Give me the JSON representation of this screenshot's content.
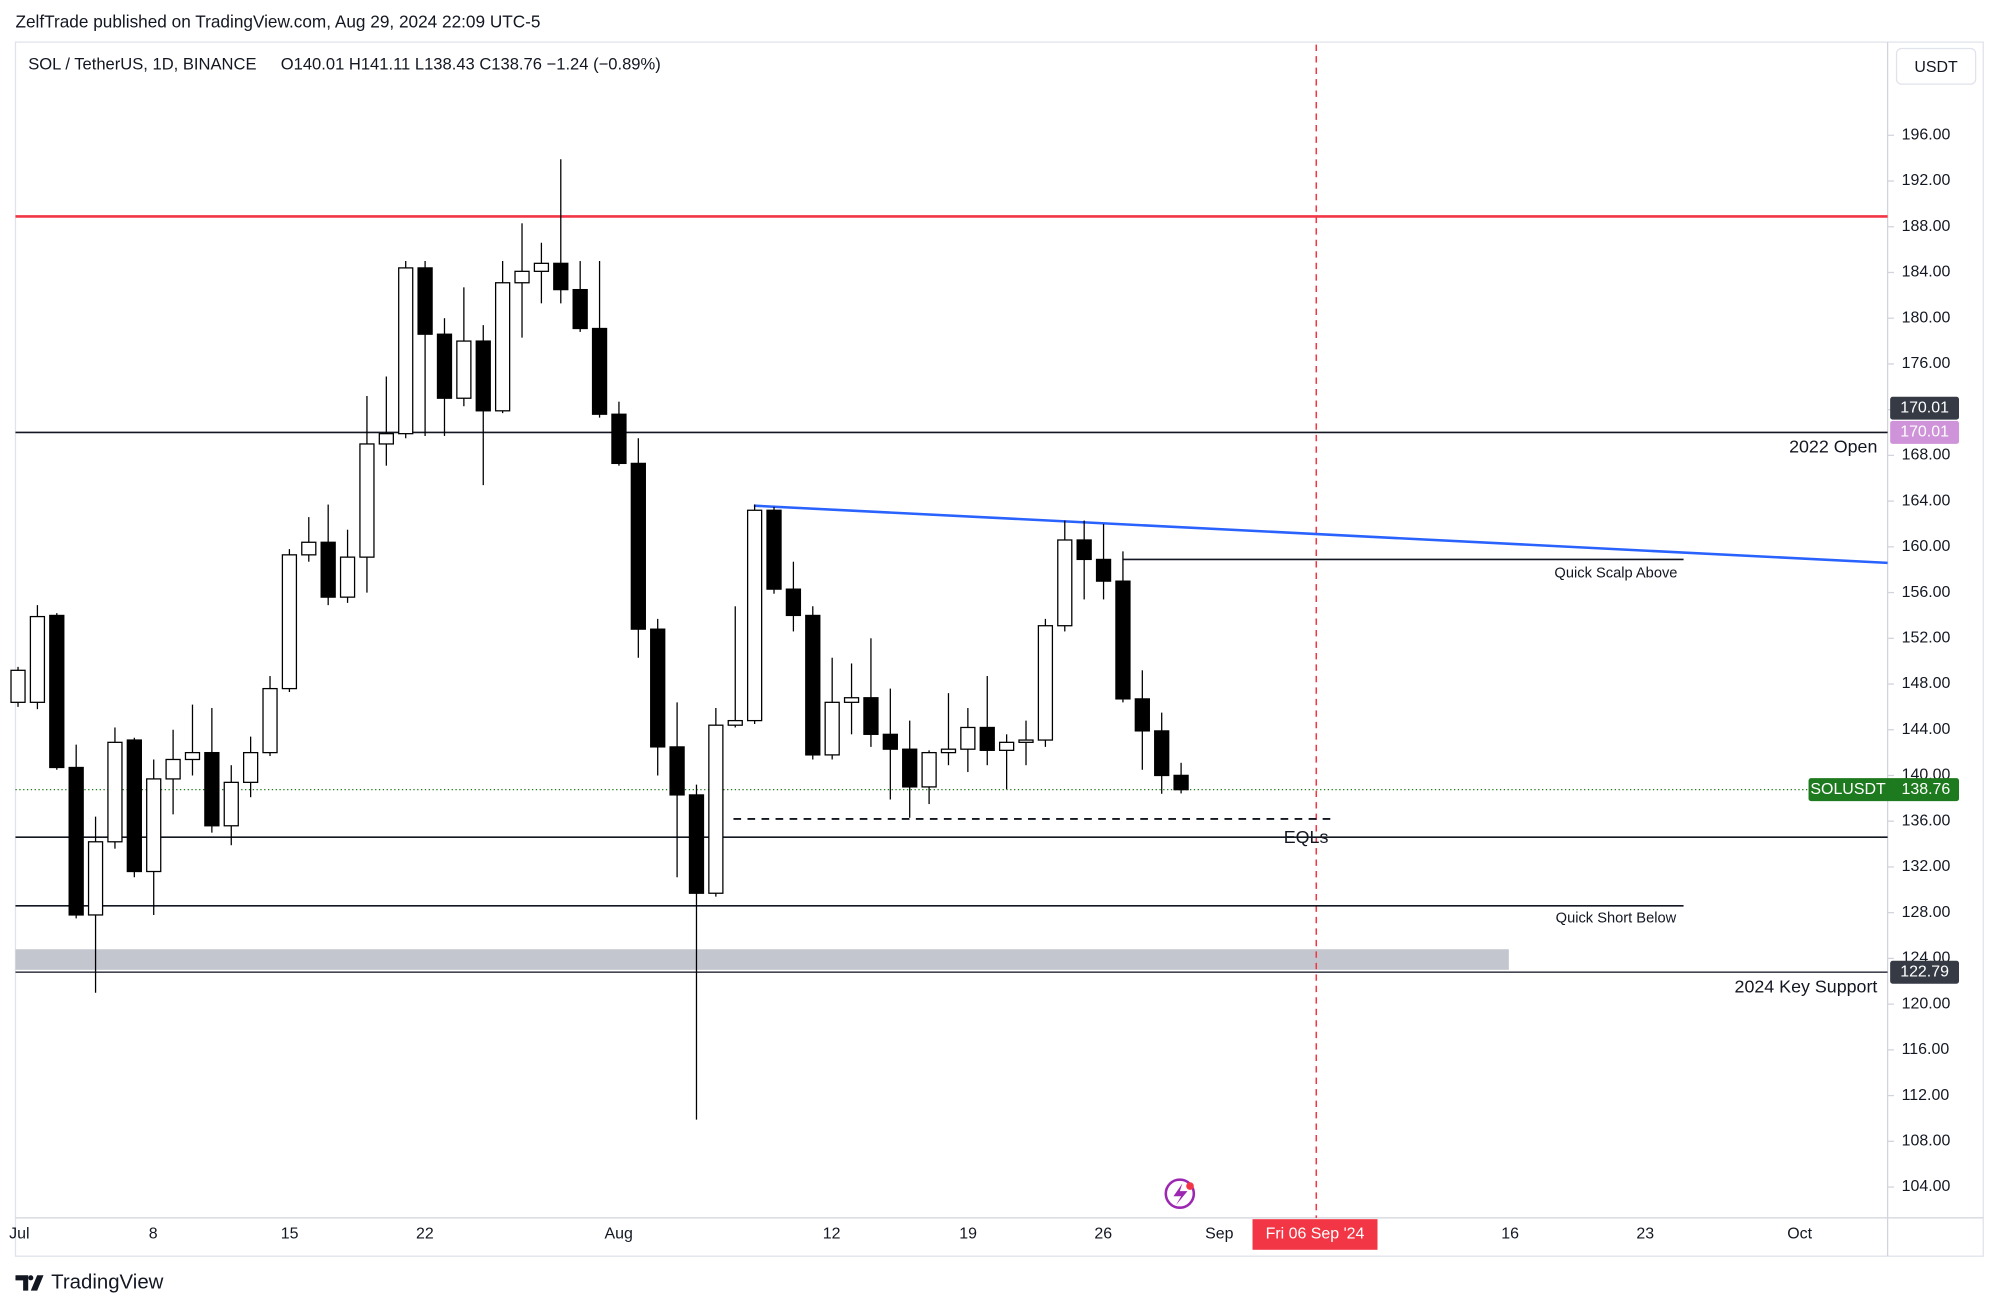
{
  "header": {
    "published": "ZelfTrade published on TradingView.com, Aug 29, 2024 22:09 UTC-5",
    "symbol": "SOL / TetherUS, 1D, BINANCE",
    "ohlc_text": "O140.01  H141.11  L138.43  C138.76  −1.24 (−0.89%)",
    "currency": "USDT",
    "brand": "TradingView"
  },
  "chart_data": {
    "type": "candlestick",
    "open": [
      146.4,
      146.4,
      154.0,
      140.7,
      127.8,
      134.2,
      143.1,
      131.6,
      139.7,
      141.4,
      142.0,
      135.6,
      139.4,
      142.0,
      147.6,
      159.3,
      160.4,
      155.6,
      159.1,
      169.0,
      169.9,
      184.4,
      178.6,
      173.0,
      178.0,
      171.9,
      183.1,
      184.1,
      184.8,
      182.5,
      179.1,
      171.6,
      167.3,
      152.8,
      142.5,
      138.3,
      129.7,
      144.4,
      144.8,
      163.2,
      156.3,
      154.0,
      141.8,
      146.4,
      146.8,
      143.6,
      142.3,
      139.0,
      142.0,
      142.3,
      144.2,
      142.2,
      142.9,
      143.1,
      153.1,
      160.6,
      158.9,
      157.0,
      146.7,
      143.9,
      140.01
    ],
    "high": [
      149.5,
      154.9,
      154.2,
      142.7,
      136.4,
      144.2,
      143.3,
      141.4,
      144.0,
      146.2,
      145.9,
      140.9,
      143.4,
      148.7,
      159.8,
      162.6,
      163.7,
      161.5,
      173.2,
      174.9,
      185.0,
      185.0,
      180.0,
      182.7,
      179.4,
      185.0,
      188.3,
      186.6,
      193.9,
      185.0,
      185.0,
      172.7,
      169.5,
      153.7,
      146.4,
      139.2,
      145.9,
      154.8,
      163.7,
      163.5,
      158.7,
      154.8,
      150.3,
      149.8,
      152.0,
      147.6,
      144.8,
      142.2,
      147.2,
      145.9,
      148.7,
      143.6,
      144.8,
      153.7,
      162.3,
      162.3,
      162.0,
      159.6,
      149.2,
      145.5,
      141.11
    ],
    "low": [
      146.0,
      145.8,
      140.5,
      127.5,
      121.0,
      133.6,
      131.1,
      127.8,
      136.6,
      140.0,
      135.0,
      133.9,
      138.1,
      141.7,
      147.3,
      158.7,
      154.9,
      155.1,
      156.0,
      167.1,
      169.5,
      169.7,
      169.7,
      172.3,
      165.4,
      171.7,
      178.3,
      181.3,
      181.3,
      178.8,
      171.3,
      167.1,
      150.3,
      140.0,
      131.1,
      109.9,
      129.4,
      144.2,
      144.5,
      155.9,
      152.6,
      141.4,
      141.4,
      143.6,
      142.5,
      137.9,
      136.3,
      137.5,
      140.9,
      140.3,
      140.9,
      138.8,
      140.9,
      142.5,
      152.6,
      155.4,
      155.4,
      146.4,
      140.5,
      138.4,
      138.43
    ],
    "close": [
      149.2,
      153.9,
      140.7,
      127.8,
      134.2,
      142.9,
      131.6,
      139.7,
      141.4,
      142.0,
      135.6,
      139.4,
      142.0,
      147.6,
      159.3,
      160.4,
      155.6,
      159.1,
      169.0,
      169.9,
      184.4,
      178.6,
      173.0,
      178.0,
      171.9,
      183.1,
      184.1,
      184.8,
      182.5,
      179.1,
      171.6,
      167.3,
      152.8,
      142.5,
      138.3,
      129.7,
      144.4,
      144.8,
      163.2,
      156.3,
      154.0,
      141.8,
      146.4,
      146.8,
      143.6,
      142.3,
      139.0,
      142.0,
      142.3,
      144.2,
      142.2,
      142.9,
      143.1,
      153.1,
      160.6,
      158.9,
      157.0,
      146.7,
      143.9,
      140.0,
      138.76
    ],
    "up_color": "#ffffff",
    "down_color": "#000000",
    "xtick_labels": [
      "Jul",
      "8",
      "15",
      "22",
      "Aug",
      "12",
      "19",
      "26",
      "Sep",
      "16",
      "23",
      "Oct"
    ],
    "ylim": [
      101.3,
      203.93
    ],
    "yticks": [
      {
        "value": 104,
        "label": "104.00"
      },
      {
        "value": 108,
        "label": "108.00"
      },
      {
        "value": 112,
        "label": "112.00"
      },
      {
        "value": 116,
        "label": "116.00"
      },
      {
        "value": 120,
        "label": "120.00"
      },
      {
        "value": 124,
        "label": "124.00"
      },
      {
        "value": 128,
        "label": "128.00"
      },
      {
        "value": 132,
        "label": "132.00"
      },
      {
        "value": 136,
        "label": "136.00"
      },
      {
        "value": 140,
        "label": "140.00"
      },
      {
        "value": 144,
        "label": "144.00"
      },
      {
        "value": 148,
        "label": "148.00"
      },
      {
        "value": 152,
        "label": "152.00"
      },
      {
        "value": 156,
        "label": "156.00"
      },
      {
        "value": 160,
        "label": "160.00"
      },
      {
        "value": 164,
        "label": "164.00"
      },
      {
        "value": 168,
        "label": "168.00"
      },
      {
        "value": 172,
        "label": "172.00"
      },
      {
        "value": 176,
        "label": "176.00"
      },
      {
        "value": 180,
        "label": "180.00"
      },
      {
        "value": 184,
        "label": "184.00"
      },
      {
        "value": 188,
        "label": "188.00"
      },
      {
        "value": 192,
        "label": "192.00"
      },
      {
        "value": 196,
        "label": "196.00"
      }
    ],
    "grid": false,
    "levels": [
      {
        "value": 188.9,
        "color": "#f23645"
      },
      {
        "value": 170.01,
        "label": "2022 Open",
        "color": "#131722"
      },
      {
        "value": 158.9,
        "label": "Quick Scalp Above",
        "color": "#131722"
      },
      {
        "value": 136.2,
        "label": "EQLs",
        "color": "#131722",
        "style": "dashed"
      },
      {
        "value": 134.6,
        "color": "#131722"
      },
      {
        "value": 128.6,
        "label": "Quick Short Below",
        "color": "#131722"
      },
      {
        "value": 122.79,
        "label": "2024 Key Support",
        "color": "#434651"
      }
    ],
    "zone": [
      123.0,
      124.8
    ],
    "zone_color": "#c3c6ce",
    "trendline": [
      163.6,
      158.6
    ],
    "trendline_color": "#2962ff",
    "last_price": {
      "label": "SOLUSDT",
      "value": 138.76,
      "color": "#1e7a1e"
    },
    "event_label": "Fri 06 Sep '24",
    "event_color": "#f23645"
  }
}
